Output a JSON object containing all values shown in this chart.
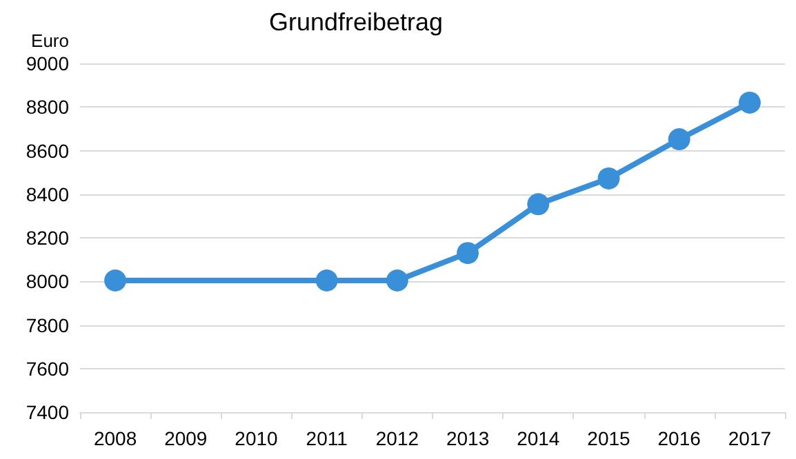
{
  "chart_data": {
    "type": "line",
    "title": "Grundfreibetrag",
    "ylabel": "Euro",
    "categories": [
      "2008",
      "2009",
      "2010",
      "2011",
      "2012",
      "2013",
      "2014",
      "2015",
      "2016",
      "2017"
    ],
    "series": [
      {
        "color": "#3a8fd9",
        "values": [
          8004,
          null,
          null,
          8004,
          8004,
          8130,
          8354,
          8472,
          8652,
          8820
        ]
      }
    ],
    "ylim": [
      7400,
      9000
    ],
    "yticks": [
      7400,
      7600,
      7800,
      8000,
      8200,
      8400,
      8600,
      8800,
      9000
    ],
    "grid": "y",
    "marker": "circle",
    "line_style": "solid"
  }
}
